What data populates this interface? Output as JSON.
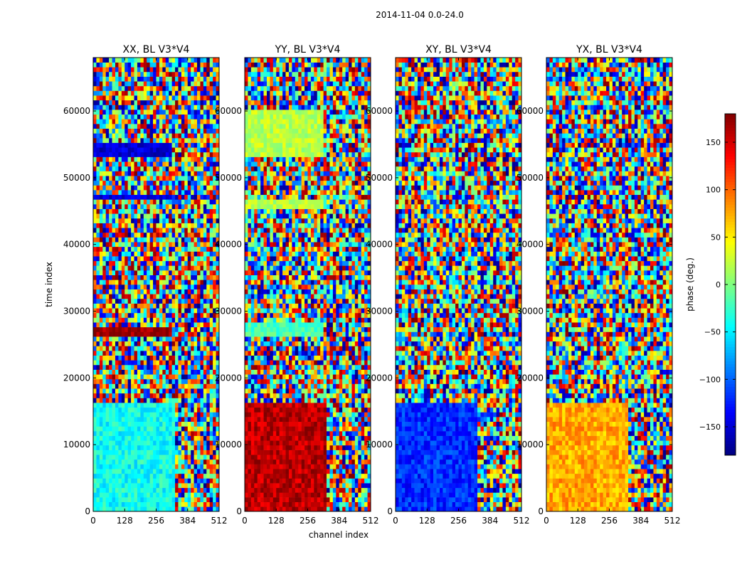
{
  "figure": {
    "suptitle": "2014-11-04 0.0-24.0",
    "xlabel": "channel index",
    "ylabel": "time index",
    "colorbar_label": "phase (deg.)"
  },
  "chart_data": [
    {
      "type": "heatmap",
      "title": "XX, BL V3*V4",
      "xlim": [
        0,
        512
      ],
      "ylim": [
        0,
        68000
      ],
      "xticks": [
        0,
        128,
        256,
        384,
        512
      ],
      "yticks": [
        0,
        10000,
        20000,
        30000,
        40000,
        50000,
        60000
      ],
      "ytick_labels": [
        "0",
        "10000",
        "20000",
        "30000",
        "40000",
        "50000",
        "60000"
      ],
      "low_time_band_phase": -40,
      "notable_bands": [
        {
          "t": [
            46500,
            47500
          ],
          "ch": [
            0,
            320
          ],
          "phase": -150
        },
        {
          "t": [
            26500,
            27800
          ],
          "ch": [
            0,
            320
          ],
          "phase": 170
        },
        {
          "t": [
            53000,
            55000
          ],
          "ch": [
            0,
            320
          ],
          "phase": -150
        }
      ]
    },
    {
      "type": "heatmap",
      "title": "YY, BL V3*V4",
      "xlim": [
        0,
        512
      ],
      "ylim": [
        0,
        68000
      ],
      "xticks": [
        0,
        128,
        256,
        384,
        512
      ],
      "yticks": [
        0,
        10000,
        20000,
        30000,
        40000,
        50000,
        60000
      ],
      "ytick_labels": [
        "0",
        "10000",
        "20000",
        "30000",
        "40000",
        "50000",
        "60000"
      ],
      "low_time_band_phase": 160,
      "notable_bands": [
        {
          "t": [
            45500,
            47000
          ],
          "ch": [
            0,
            320
          ],
          "phase": 20
        },
        {
          "t": [
            26500,
            28000
          ],
          "ch": [
            0,
            320
          ],
          "phase": -20
        },
        {
          "t": [
            53000,
            60000
          ],
          "ch": [
            0,
            320
          ],
          "phase": 20
        }
      ]
    },
    {
      "type": "heatmap",
      "title": "XY, BL V3*V4",
      "xlim": [
        0,
        512
      ],
      "ylim": [
        0,
        68000
      ],
      "xticks": [
        0,
        128,
        256,
        384,
        512
      ],
      "yticks": [
        0,
        10000,
        20000,
        30000,
        40000,
        50000,
        60000
      ],
      "ytick_labels": [
        "0",
        "10000",
        "20000",
        "30000",
        "40000",
        "50000",
        "60000"
      ],
      "low_time_band_phase": -120,
      "notable_bands": []
    },
    {
      "type": "heatmap",
      "title": "YX, BL V3*V4",
      "xlim": [
        0,
        512
      ],
      "ylim": [
        0,
        68000
      ],
      "xticks": [
        0,
        128,
        256,
        384,
        512
      ],
      "yticks": [
        0,
        10000,
        20000,
        30000,
        40000,
        50000,
        60000
      ],
      "ytick_labels": [
        "0",
        "10000",
        "20000",
        "30000",
        "40000",
        "50000",
        "60000"
      ],
      "low_time_band_phase": 75,
      "notable_bands": []
    }
  ],
  "colorbar": {
    "vmin": -180,
    "vmax": 180,
    "ticks": [
      150,
      100,
      50,
      0,
      -50,
      -100,
      -150
    ],
    "tick_labels": [
      "150",
      "100",
      "50",
      "0",
      "−50",
      "−100",
      "−150"
    ],
    "colormap": "jet"
  }
}
